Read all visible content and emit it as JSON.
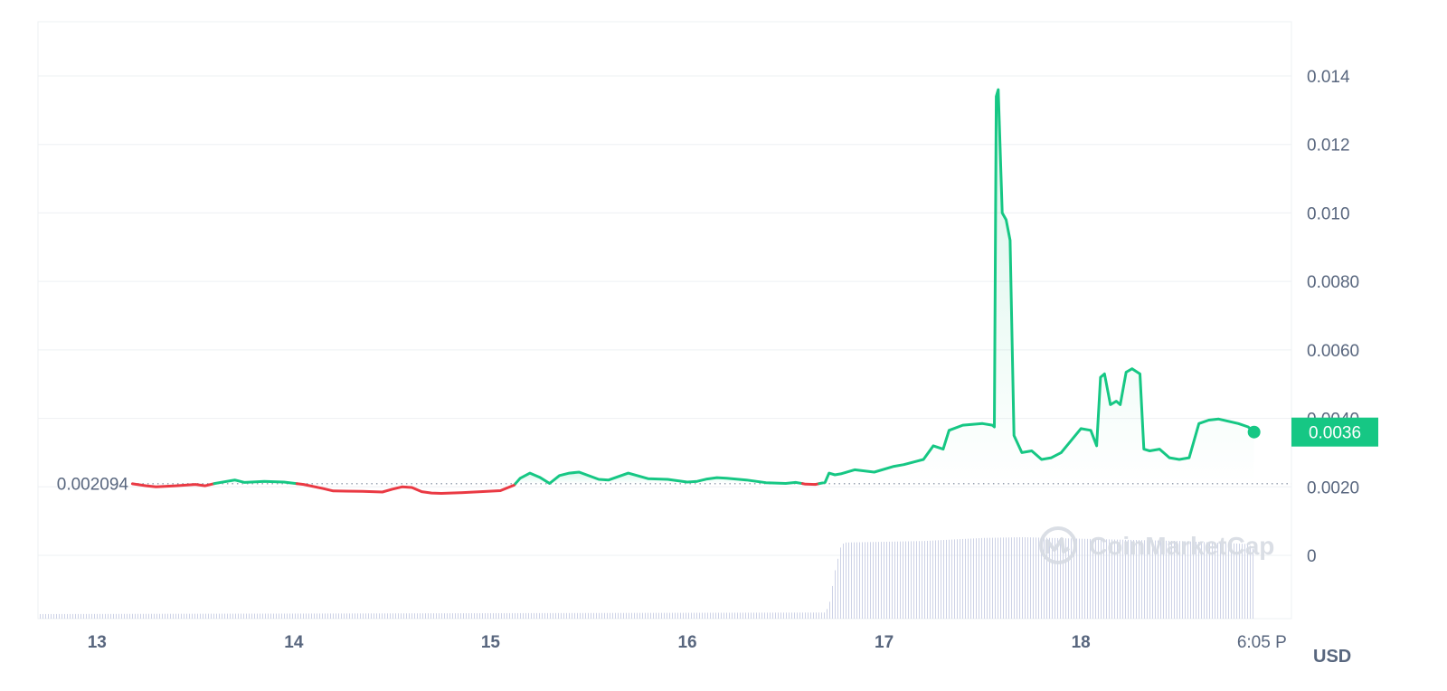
{
  "chart_data": {
    "type": "line",
    "currency": "USD",
    "open_price": 0.002094,
    "open_price_label": "0.002094",
    "current_price": 0.0036,
    "current_price_label": "0.0036",
    "watermark": "CoinMarketCap",
    "x_ticks": [
      "13",
      "14",
      "15",
      "16",
      "17",
      "18",
      "6:05 P"
    ],
    "x_tick_values": [
      13,
      14,
      15,
      16,
      17,
      18,
      19
    ],
    "xlim": [
      12.7,
      19.07
    ],
    "y_ticks": [
      "0",
      "0.0020",
      "0.0040",
      "0.0060",
      "0.0080",
      "0.010",
      "0.012",
      "0.014"
    ],
    "y_tick_values": [
      0,
      0.002,
      0.004,
      0.006,
      0.008,
      0.01,
      0.012,
      0.014
    ],
    "ylim": [
      0,
      0.0144
    ],
    "grid": true,
    "colors": {
      "up": "#16c784",
      "down": "#ea3943",
      "badge": "#16c784"
    },
    "price": {
      "x": [
        13.18,
        13.25,
        13.3,
        13.4,
        13.5,
        13.55,
        13.6,
        13.7,
        13.75,
        13.85,
        13.95,
        14.05,
        14.15,
        14.2,
        14.35,
        14.45,
        14.5,
        14.55,
        14.6,
        14.65,
        14.7,
        14.75,
        14.85,
        14.95,
        15.05,
        15.12,
        15.15,
        15.2,
        15.25,
        15.3,
        15.35,
        15.4,
        15.45,
        15.55,
        15.6,
        15.7,
        15.8,
        15.9,
        16.0,
        16.05,
        16.1,
        16.15,
        16.2,
        16.3,
        16.4,
        16.5,
        16.55,
        16.6,
        16.65,
        16.7,
        16.72,
        16.75,
        16.78,
        16.85,
        16.95,
        17.05,
        17.1,
        17.2,
        17.25,
        17.3,
        17.33,
        17.4,
        17.5,
        17.55,
        17.56,
        17.57,
        17.58,
        17.6,
        17.62,
        17.64,
        17.66,
        17.7,
        17.75,
        17.8,
        17.85,
        17.9,
        17.95,
        18.0,
        18.05,
        18.08,
        18.1,
        18.12,
        18.15,
        18.18,
        18.2,
        18.23,
        18.26,
        18.3,
        18.32,
        18.35,
        18.4,
        18.45,
        18.5,
        18.55,
        18.6,
        18.65,
        18.7,
        18.8,
        18.85,
        18.88
      ],
      "y": [
        0.00209,
        0.00203,
        0.002,
        0.00203,
        0.00207,
        0.00203,
        0.0021,
        0.0022,
        0.00213,
        0.00216,
        0.00214,
        0.00207,
        0.00195,
        0.00188,
        0.00187,
        0.00185,
        0.00193,
        0.002,
        0.00198,
        0.00186,
        0.00182,
        0.00181,
        0.00183,
        0.00186,
        0.00189,
        0.00205,
        0.00225,
        0.0024,
        0.00228,
        0.0021,
        0.00233,
        0.0024,
        0.00243,
        0.00222,
        0.0022,
        0.0024,
        0.00224,
        0.00222,
        0.00214,
        0.00216,
        0.00223,
        0.00227,
        0.00225,
        0.0022,
        0.00212,
        0.0021,
        0.00213,
        0.00208,
        0.00207,
        0.00213,
        0.0024,
        0.00235,
        0.00238,
        0.0025,
        0.00243,
        0.0026,
        0.00265,
        0.0028,
        0.0032,
        0.0031,
        0.00365,
        0.0038,
        0.00385,
        0.0038,
        0.00375,
        0.0134,
        0.0136,
        0.01,
        0.0098,
        0.0092,
        0.0035,
        0.003,
        0.00305,
        0.0028,
        0.00285,
        0.003,
        0.00335,
        0.0037,
        0.00365,
        0.0032,
        0.0052,
        0.0053,
        0.0044,
        0.0045,
        0.0044,
        0.00535,
        0.00545,
        0.0053,
        0.0031,
        0.00305,
        0.0031,
        0.00285,
        0.0028,
        0.00285,
        0.00385,
        0.00395,
        0.00398,
        0.00385,
        0.00375,
        0.0036
      ]
    },
    "volume": {
      "x": [
        12.7,
        16.7,
        16.72,
        16.75,
        16.78,
        16.8,
        17.2,
        17.5,
        17.7,
        18.0,
        18.5,
        18.85,
        18.88
      ],
      "y": [
        0.06,
        0.08,
        0.2,
        0.65,
        0.97,
        1.0,
        1.02,
        1.06,
        1.07,
        1.05,
        1.02,
        0.98,
        0.9
      ]
    }
  }
}
